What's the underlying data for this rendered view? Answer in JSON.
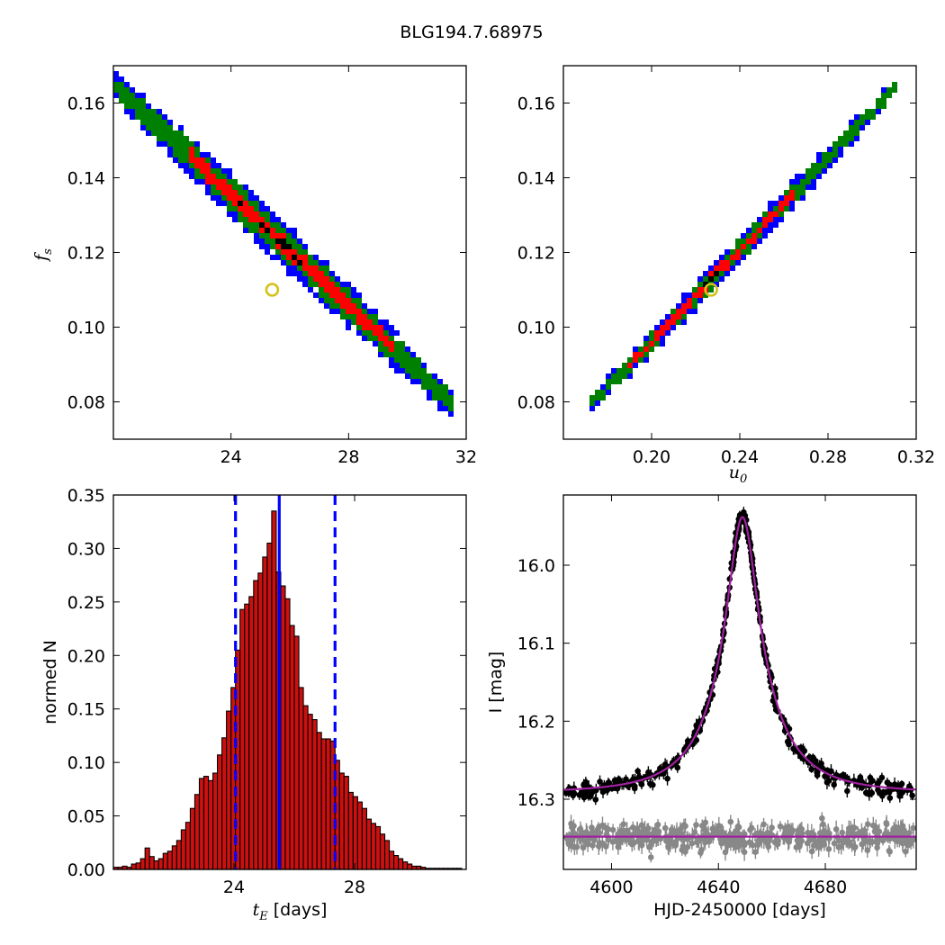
{
  "figure": {
    "title": "BLG194.7.68975"
  },
  "colors": {
    "outer": "#0000ff",
    "mid": "#008000",
    "inner": "#ff0000",
    "core": "#000000",
    "marker": "#d4c21a",
    "hist_fill": "#cc1010",
    "vline": "#0000ff",
    "model": "#a020a0",
    "data": "#000000",
    "residual": "#888888"
  },
  "chart_data": [
    {
      "id": "tE-fs",
      "type": "heatmap",
      "title": "",
      "xlabel": "",
      "ylabel": "f_s",
      "ylabel_main": "f",
      "ylabel_sub": "s",
      "xlim": [
        20,
        32
      ],
      "ylim": [
        0.07,
        0.17
      ],
      "xticks": [
        "24",
        "28",
        "32"
      ],
      "xtick_values": [
        24,
        28,
        32
      ],
      "yticks": [
        "0.08",
        "0.10",
        "0.12",
        "0.14",
        "0.16"
      ],
      "ytick_values": [
        0.08,
        0.1,
        0.12,
        0.14,
        0.16
      ],
      "best_fit": {
        "x": 25.4,
        "y": 0.11
      },
      "ridge": {
        "x0": 20.0,
        "y0": 0.165,
        "x1": 31.6,
        "y1": 0.079
      },
      "bands": {
        "outer": 0.0064,
        "mid": 0.0042,
        "inner": 0.0022
      },
      "inner_range": [
        22.5,
        29.6
      ],
      "core_range": [
        24.2,
        26.4
      ]
    },
    {
      "id": "u0-fs",
      "type": "heatmap",
      "title": "",
      "xlabel": "u_0",
      "xlabel_main": "u",
      "xlabel_sub": "0",
      "ylabel": "",
      "xlim": [
        0.16,
        0.32
      ],
      "ylim": [
        0.07,
        0.17
      ],
      "xticks": [
        "0.20",
        "0.24",
        "0.28",
        "0.32"
      ],
      "xtick_values": [
        0.2,
        0.24,
        0.28,
        0.32
      ],
      "yticks": [
        "0.08",
        "0.10",
        "0.12",
        "0.14",
        "0.16"
      ],
      "ytick_values": [
        0.08,
        0.1,
        0.12,
        0.14,
        0.16
      ],
      "best_fit": {
        "x": 0.227,
        "y": 0.11
      },
      "ridge": {
        "x0": 0.172,
        "y0": 0.079,
        "x1": 0.312,
        "y1": 0.165
      },
      "bands": {
        "outer": 0.0036,
        "mid": 0.0024,
        "inner": 0.0012
      },
      "inner_range": [
        0.19,
        0.265
      ],
      "core_range": [
        0.222,
        0.234
      ]
    },
    {
      "id": "tE-hist",
      "type": "bar",
      "title": "",
      "xlabel": "t_E [days]",
      "xlabel_main": "t",
      "xlabel_sub": "E",
      "xlabel_unit": "[days]",
      "ylabel": "normed N",
      "xlim": [
        20,
        31.7
      ],
      "ylim": [
        0,
        0.35
      ],
      "xticks": [
        "24",
        "28"
      ],
      "xtick_values": [
        24,
        28
      ],
      "yticks": [
        "0.00",
        "0.05",
        "0.10",
        "0.15",
        "0.20",
        "0.25",
        "0.30",
        "0.35"
      ],
      "ytick_values": [
        0,
        0.05,
        0.1,
        0.15,
        0.2,
        0.25,
        0.3,
        0.35
      ],
      "bin_start": 20.0,
      "bin_width": 0.15,
      "values": [
        0.002,
        0.002,
        0.003,
        0.002,
        0.005,
        0.006,
        0.01,
        0.02,
        0.012,
        0.008,
        0.01,
        0.015,
        0.017,
        0.022,
        0.027,
        0.037,
        0.044,
        0.057,
        0.07,
        0.085,
        0.087,
        0.083,
        0.09,
        0.107,
        0.123,
        0.148,
        0.17,
        0.205,
        0.243,
        0.248,
        0.255,
        0.27,
        0.277,
        0.292,
        0.305,
        0.335,
        0.278,
        0.265,
        0.253,
        0.228,
        0.218,
        0.17,
        0.153,
        0.145,
        0.14,
        0.128,
        0.122,
        0.122,
        0.12,
        0.102,
        0.09,
        0.087,
        0.072,
        0.068,
        0.063,
        0.057,
        0.047,
        0.043,
        0.04,
        0.033,
        0.027,
        0.017,
        0.013,
        0.01,
        0.007,
        0.005,
        0.003,
        0.003,
        0.002,
        0.001,
        0.001,
        0.001,
        0.001,
        0.001,
        0.001,
        0.001,
        0.001
      ],
      "median": 25.5,
      "bounds": [
        24.05,
        27.35
      ]
    },
    {
      "id": "lightcurve",
      "type": "scatter",
      "title": "",
      "xlabel": "HJD-2450000 [days]",
      "ylabel": "I [mag]",
      "xlim": [
        4582,
        4714
      ],
      "ylim": [
        16.39,
        15.91
      ],
      "y_inverted": true,
      "xticks": [
        "4600",
        "4640",
        "4680"
      ],
      "xtick_values": [
        4600,
        4640,
        4680
      ],
      "yticks": [
        "16.0",
        "16.1",
        "16.2",
        "16.3"
      ],
      "ytick_values": [
        16.0,
        16.1,
        16.2,
        16.3
      ],
      "model": {
        "t0": 4649.0,
        "u0": 0.227,
        "tE": 25.4,
        "baseline": 16.291,
        "blend_fraction": 0.11
      },
      "residual_level": 16.348,
      "n_points": 430
    }
  ]
}
